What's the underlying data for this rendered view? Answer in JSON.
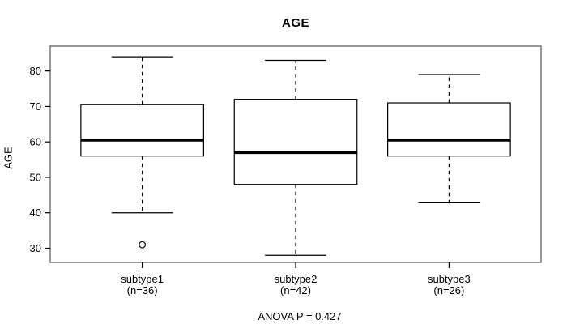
{
  "figure": {
    "title": "AGE",
    "y_axis_label": "AGE",
    "footer": "ANOVA P = 0.427"
  },
  "chart_data": {
    "type": "boxplot",
    "title": "AGE",
    "xlabel": "",
    "ylabel": "AGE",
    "ylim": [
      26,
      87
    ],
    "yticks": [
      30,
      40,
      50,
      60,
      70,
      80
    ],
    "grid": false,
    "legend": "none",
    "annotation": "ANOVA P = 0.427",
    "groups": [
      {
        "label": "subtype1",
        "sublabel": "(n=36)",
        "n": 36,
        "whisker_low": 40,
        "q1": 56,
        "median": 60.5,
        "q3": 70.5,
        "whisker_high": 84,
        "outliers": [
          31
        ]
      },
      {
        "label": "subtype2",
        "sublabel": "(n=42)",
        "n": 42,
        "whisker_low": 28,
        "q1": 48,
        "median": 57,
        "q3": 72,
        "whisker_high": 83,
        "outliers": []
      },
      {
        "label": "subtype3",
        "sublabel": "(n=26)",
        "n": 26,
        "whisker_low": 43,
        "q1": 56,
        "median": 60.5,
        "q3": 71,
        "whisker_high": 79,
        "outliers": []
      }
    ],
    "colors": {
      "box_stroke": "#000000",
      "median": "#000000",
      "whisker": "#000000",
      "outlier_stroke": "#000000",
      "frame": "#6b6b6b",
      "background": "#ffffff",
      "text": "#000000"
    }
  }
}
